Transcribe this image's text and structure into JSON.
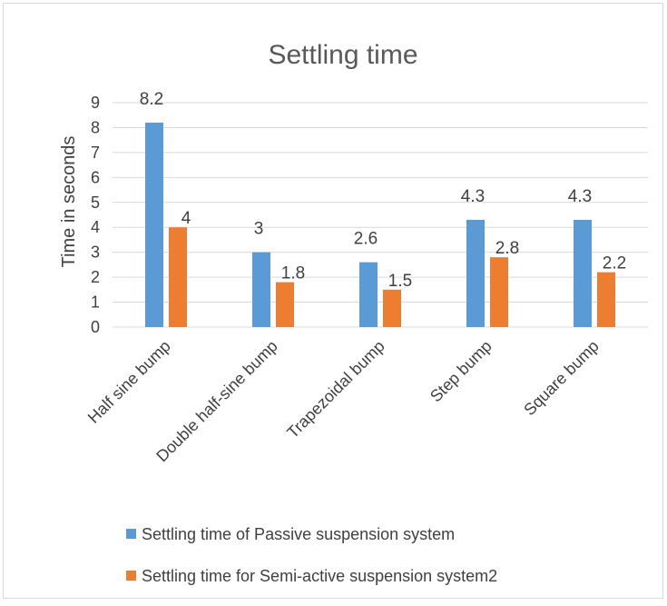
{
  "chart_data": {
    "type": "bar",
    "title": "Settling time",
    "xlabel": "",
    "ylabel": "Time in seconds",
    "ylim": [
      0,
      9
    ],
    "yticks": [
      0,
      1,
      2,
      3,
      4,
      5,
      6,
      7,
      8,
      9
    ],
    "grid": true,
    "legend_position": "bottom",
    "categories": [
      "Half sine bump",
      "Double half-sine bump",
      "Trapezoidal bump",
      "Step bump",
      "Square bump"
    ],
    "series": [
      {
        "name": "Settling time of Passive suspension system",
        "values": [
          8.2,
          3,
          2.6,
          4.3,
          4.3
        ],
        "color": "#5b9bd5"
      },
      {
        "name": "Settling time for Semi-active suspension system2",
        "values": [
          4,
          1.8,
          1.5,
          2.8,
          2.2
        ],
        "color": "#ed7d31"
      }
    ]
  }
}
